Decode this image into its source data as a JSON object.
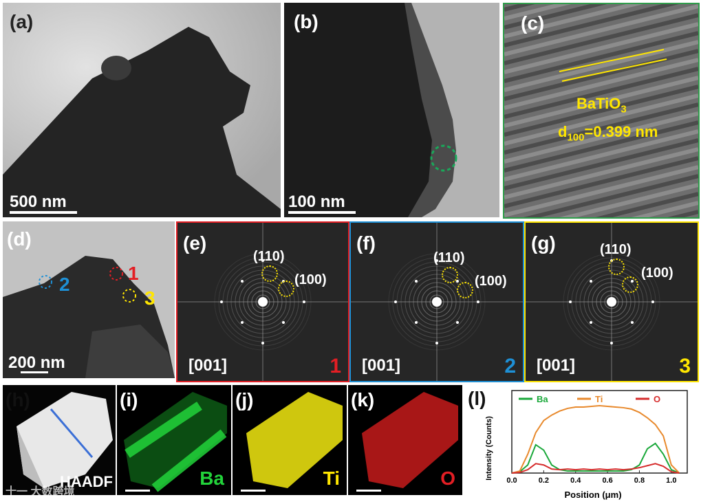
{
  "panels": {
    "a": {
      "label": "(a)",
      "scale": "500 nm"
    },
    "b": {
      "label": "(b)",
      "scale": "100 nm"
    },
    "c": {
      "label": "(c)",
      "material": "BaTiO",
      "material_sub": "3",
      "d_prefix": "d",
      "d_sub": "100",
      "d_value": "=0.399 nm"
    },
    "d": {
      "label": "(d)",
      "scale": "200 nm",
      "markers": [
        "1",
        "2",
        "3"
      ]
    },
    "e": {
      "label": "(e)",
      "zone": "[001]",
      "num": "1",
      "p1": "(110)",
      "p2": "(100)"
    },
    "f": {
      "label": "(f)",
      "zone": "[001]",
      "num": "2",
      "p1": "(110)",
      "p2": "(100)"
    },
    "g": {
      "label": "(g)",
      "zone": "[001]",
      "num": "3",
      "p1": "(110)",
      "p2": "(100)"
    },
    "h": {
      "label": "(h)",
      "tag": "HAADF"
    },
    "i": {
      "label": "(i)",
      "element": "Ba"
    },
    "j": {
      "label": "(j)",
      "element": "Ti"
    },
    "k": {
      "label": "(k)",
      "element": "O"
    },
    "l": {
      "label": "(l)"
    }
  },
  "watermark": "十一 大数跨境",
  "colors": {
    "ba": "#1aa83a",
    "ti": "#e8892c",
    "o": "#d62c2c",
    "red": "#e31e24",
    "blue": "#1e90d6",
    "yellow": "#ffe600"
  },
  "chart_data": {
    "type": "line",
    "xlabel": "Position (μm)",
    "ylabel": "Intensity (Counts)",
    "xlim": [
      0.0,
      1.1
    ],
    "xticks": [
      "0.0",
      "0.2",
      "0.4",
      "0.6",
      "0.8",
      "1.0"
    ],
    "x": [
      0.0,
      0.05,
      0.1,
      0.15,
      0.2,
      0.25,
      0.3,
      0.35,
      0.4,
      0.45,
      0.5,
      0.55,
      0.6,
      0.65,
      0.7,
      0.75,
      0.8,
      0.85,
      0.9,
      0.95,
      1.0,
      1.05
    ],
    "series": [
      {
        "name": "Ba",
        "color": "#1aa83a",
        "values": [
          0,
          0.02,
          0.12,
          0.42,
          0.34,
          0.12,
          0.05,
          0.03,
          0.03,
          0.03,
          0.03,
          0.03,
          0.03,
          0.03,
          0.03,
          0.05,
          0.12,
          0.36,
          0.44,
          0.28,
          0.05,
          0
        ]
      },
      {
        "name": "Ti",
        "color": "#e8892c",
        "values": [
          0,
          0.03,
          0.28,
          0.6,
          0.78,
          0.86,
          0.92,
          0.96,
          0.98,
          0.98,
          0.99,
          1.0,
          0.99,
          0.98,
          0.97,
          0.95,
          0.9,
          0.82,
          0.72,
          0.55,
          0.12,
          0
        ]
      },
      {
        "name": "O",
        "color": "#d62c2c",
        "values": [
          0,
          0.01,
          0.05,
          0.14,
          0.12,
          0.06,
          0.05,
          0.06,
          0.05,
          0.06,
          0.05,
          0.06,
          0.05,
          0.06,
          0.05,
          0.06,
          0.08,
          0.11,
          0.14,
          0.1,
          0.02,
          0
        ]
      }
    ]
  }
}
